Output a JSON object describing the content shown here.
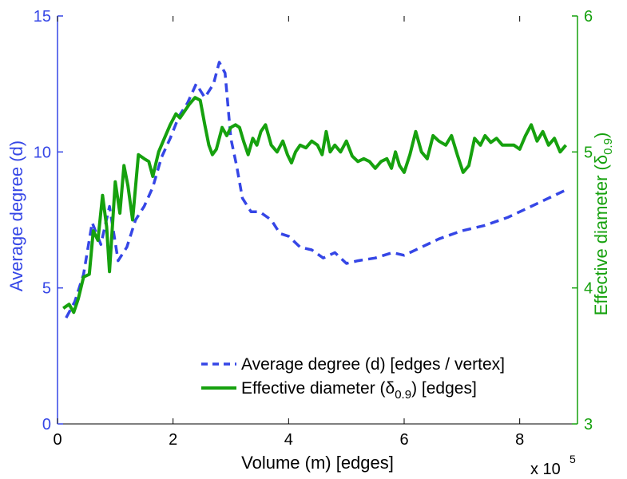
{
  "chart_data": {
    "type": "line",
    "x_label": "Volume (m) [edges]",
    "x_multiplier": "x 10",
    "x_multiplier_exponent": "5",
    "x_range": [
      0,
      9
    ],
    "x_ticks": [
      0,
      2,
      4,
      6,
      8
    ],
    "y_left": {
      "label": "Average degree (d)",
      "range": [
        0,
        15
      ],
      "ticks": [
        0,
        5,
        10,
        15
      ],
      "color": "#3546e6"
    },
    "y_right": {
      "label_main": "Effective diameter (δ",
      "label_sub": "0.9",
      "label_end": ")",
      "range": [
        3,
        6
      ],
      "ticks": [
        3,
        4,
        5,
        6
      ],
      "color": "#16a10e"
    },
    "legend_position": "bottom-right",
    "series": [
      {
        "name": "Average degree (d) [edges / vertex]",
        "legend_main": "Average degree (d) [edges / vertex]",
        "axis": "left",
        "style": "dashed",
        "color": "#3546e6",
        "points": [
          [
            0.15,
            3.9
          ],
          [
            0.3,
            4.5
          ],
          [
            0.45,
            5.5
          ],
          [
            0.6,
            7.4
          ],
          [
            0.75,
            6.6
          ],
          [
            0.9,
            8.0
          ],
          [
            1.05,
            6.0
          ],
          [
            1.2,
            6.5
          ],
          [
            1.35,
            7.5
          ],
          [
            1.5,
            8.0
          ],
          [
            1.65,
            8.7
          ],
          [
            1.8,
            9.8
          ],
          [
            1.95,
            10.5
          ],
          [
            2.1,
            11.3
          ],
          [
            2.25,
            11.8
          ],
          [
            2.4,
            12.5
          ],
          [
            2.55,
            12.0
          ],
          [
            2.7,
            12.5
          ],
          [
            2.8,
            13.3
          ],
          [
            2.9,
            12.9
          ],
          [
            3.0,
            10.5
          ],
          [
            3.1,
            9.5
          ],
          [
            3.2,
            8.3
          ],
          [
            3.35,
            7.8
          ],
          [
            3.5,
            7.8
          ],
          [
            3.7,
            7.5
          ],
          [
            3.85,
            7.0
          ],
          [
            4.0,
            6.9
          ],
          [
            4.2,
            6.5
          ],
          [
            4.4,
            6.4
          ],
          [
            4.6,
            6.1
          ],
          [
            4.8,
            6.3
          ],
          [
            5.0,
            5.9
          ],
          [
            5.2,
            6.0
          ],
          [
            5.5,
            6.1
          ],
          [
            5.8,
            6.3
          ],
          [
            6.0,
            6.2
          ],
          [
            6.3,
            6.5
          ],
          [
            6.6,
            6.8
          ],
          [
            7.0,
            7.1
          ],
          [
            7.4,
            7.3
          ],
          [
            7.8,
            7.6
          ],
          [
            8.2,
            8.0
          ],
          [
            8.5,
            8.3
          ],
          [
            8.8,
            8.6
          ]
        ]
      },
      {
        "name": "Effective diameter (δ0.9) [edges]",
        "legend_main": "Effective diameter (δ",
        "legend_sub": "0.9",
        "legend_end": ") [edges]",
        "axis": "right",
        "style": "solid",
        "color": "#16a10e",
        "points": [
          [
            0.1,
            3.85
          ],
          [
            0.2,
            3.88
          ],
          [
            0.28,
            3.82
          ],
          [
            0.36,
            3.92
          ],
          [
            0.45,
            4.08
          ],
          [
            0.55,
            4.1
          ],
          [
            0.62,
            4.42
          ],
          [
            0.7,
            4.35
          ],
          [
            0.78,
            4.68
          ],
          [
            0.85,
            4.45
          ],
          [
            0.9,
            4.12
          ],
          [
            1.0,
            4.78
          ],
          [
            1.08,
            4.55
          ],
          [
            1.15,
            4.9
          ],
          [
            1.22,
            4.75
          ],
          [
            1.3,
            4.5
          ],
          [
            1.4,
            4.98
          ],
          [
            1.5,
            4.95
          ],
          [
            1.58,
            4.93
          ],
          [
            1.65,
            4.82
          ],
          [
            1.75,
            5.0
          ],
          [
            1.85,
            5.1
          ],
          [
            1.95,
            5.2
          ],
          [
            2.05,
            5.28
          ],
          [
            2.12,
            5.25
          ],
          [
            2.2,
            5.3
          ],
          [
            2.28,
            5.35
          ],
          [
            2.38,
            5.4
          ],
          [
            2.47,
            5.38
          ],
          [
            2.55,
            5.2
          ],
          [
            2.62,
            5.05
          ],
          [
            2.68,
            4.98
          ],
          [
            2.75,
            5.02
          ],
          [
            2.85,
            5.18
          ],
          [
            2.93,
            5.12
          ],
          [
            3.0,
            5.18
          ],
          [
            3.08,
            5.2
          ],
          [
            3.15,
            5.18
          ],
          [
            3.22,
            5.08
          ],
          [
            3.3,
            4.98
          ],
          [
            3.38,
            5.1
          ],
          [
            3.45,
            5.05
          ],
          [
            3.52,
            5.15
          ],
          [
            3.6,
            5.2
          ],
          [
            3.7,
            5.05
          ],
          [
            3.8,
            5.0
          ],
          [
            3.9,
            5.08
          ],
          [
            3.98,
            4.98
          ],
          [
            4.05,
            4.92
          ],
          [
            4.12,
            5.0
          ],
          [
            4.2,
            5.05
          ],
          [
            4.3,
            5.03
          ],
          [
            4.4,
            5.08
          ],
          [
            4.5,
            5.05
          ],
          [
            4.58,
            4.98
          ],
          [
            4.65,
            5.15
          ],
          [
            4.72,
            5.0
          ],
          [
            4.8,
            5.05
          ],
          [
            4.9,
            5.0
          ],
          [
            5.0,
            5.08
          ],
          [
            5.1,
            4.97
          ],
          [
            5.2,
            4.93
          ],
          [
            5.3,
            4.95
          ],
          [
            5.4,
            4.93
          ],
          [
            5.5,
            4.88
          ],
          [
            5.6,
            4.93
          ],
          [
            5.7,
            4.95
          ],
          [
            5.78,
            4.88
          ],
          [
            5.85,
            5.0
          ],
          [
            5.92,
            4.9
          ],
          [
            6.0,
            4.85
          ],
          [
            6.1,
            4.98
          ],
          [
            6.2,
            5.15
          ],
          [
            6.3,
            5.0
          ],
          [
            6.4,
            4.95
          ],
          [
            6.5,
            5.12
          ],
          [
            6.6,
            5.08
          ],
          [
            6.72,
            5.05
          ],
          [
            6.82,
            5.12
          ],
          [
            6.92,
            4.98
          ],
          [
            7.02,
            4.85
          ],
          [
            7.12,
            4.9
          ],
          [
            7.22,
            5.1
          ],
          [
            7.32,
            5.05
          ],
          [
            7.4,
            5.12
          ],
          [
            7.5,
            5.07
          ],
          [
            7.6,
            5.1
          ],
          [
            7.7,
            5.05
          ],
          [
            7.8,
            5.05
          ],
          [
            7.9,
            5.05
          ],
          [
            8.0,
            5.02
          ],
          [
            8.1,
            5.12
          ],
          [
            8.2,
            5.2
          ],
          [
            8.3,
            5.08
          ],
          [
            8.4,
            5.15
          ],
          [
            8.5,
            5.05
          ],
          [
            8.6,
            5.1
          ],
          [
            8.7,
            5.0
          ],
          [
            8.8,
            5.05
          ]
        ]
      }
    ]
  }
}
